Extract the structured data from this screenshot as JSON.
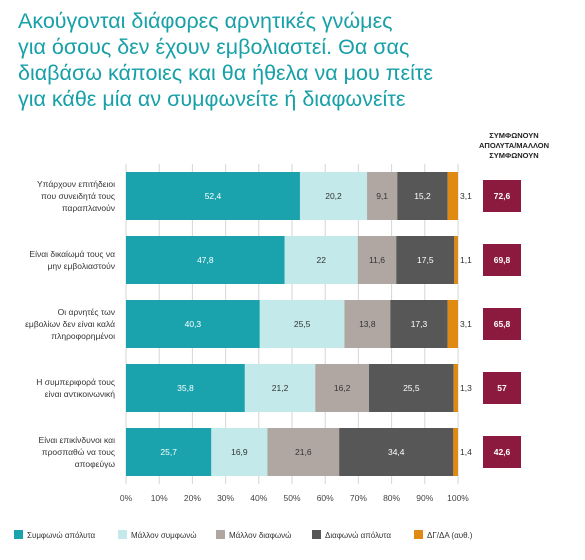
{
  "title": {
    "lines": [
      "Ακούγονται διάφορες αρνητικές γνώμες",
      "για όσους δεν έχουν εμβολιαστεί. Θα σας",
      "διαβάσω κάποιες και θα ήθελα να μου πείτε",
      "για κάθε μία αν συμφωνείτε ή διαφωνείτε"
    ]
  },
  "chart_data": {
    "type": "bar",
    "orientation": "horizontal",
    "stacked": true,
    "categories": [
      [
        "Υπάρχουν επιτήδειοι",
        "που συνειδητά τους",
        "παραπλανούν"
      ],
      [
        "Είναι δικαίωμά τους να",
        "μην εμβολιαστούν"
      ],
      [
        "Οι αρνητές των",
        "εμβολίων δεν είναι καλά",
        "πληροφορημένοι"
      ],
      [
        "Η συμπεριφορά τους",
        "είναι αντικοινωνική"
      ],
      [
        "Είναι επικίνδυνοι και",
        "προσπαθώ να τους",
        "αποφεύγω"
      ]
    ],
    "series": [
      {
        "name": "Συμφωνώ απόλυτα",
        "color": "#1aa3ad",
        "label_color": "#ffffff",
        "values": [
          52.4,
          47.8,
          40.3,
          35.8,
          25.7
        ]
      },
      {
        "name": "Μάλλον συμφωνώ",
        "color": "#c4e9ea",
        "label_color": "#333333",
        "values": [
          20.2,
          22,
          25.5,
          21.2,
          16.9
        ]
      },
      {
        "name": "Μάλλον διαφωνώ",
        "color": "#b1a7a2",
        "label_color": "#333333",
        "values": [
          9.1,
          11.6,
          13.8,
          16.2,
          21.6
        ]
      },
      {
        "name": "Διαφωνώ απόλυτα",
        "color": "#575757",
        "label_color": "#ffffff",
        "values": [
          15.2,
          17.5,
          17.3,
          25.5,
          34.4
        ]
      },
      {
        "name": "ΔΓ/ΔΑ (αυθ.)",
        "color": "#e08a12",
        "label_color": "#333333",
        "values": [
          3.1,
          1.1,
          3.1,
          1.3,
          1.4
        ]
      }
    ],
    "value_labels": [
      [
        "52,4",
        "20,2",
        "9,1",
        "15,2",
        "3,1"
      ],
      [
        "47,8",
        "22",
        "11,6",
        "17,5",
        "1,1"
      ],
      [
        "40,3",
        "25,5",
        "13,8",
        "17,3",
        "3,1"
      ],
      [
        "35,8",
        "21,2",
        "16,2",
        "25,5",
        "1,3"
      ],
      [
        "25,7",
        "16,9",
        "21,6",
        "34,4",
        "1,4"
      ]
    ],
    "xlim": [
      0,
      100
    ],
    "x_ticks": [
      "0%",
      "10%",
      "20%",
      "30%",
      "40%",
      "50%",
      "60%",
      "70%",
      "80%",
      "90%",
      "100%"
    ],
    "grid": true,
    "legend_position": "bottom",
    "summary": {
      "header": [
        "ΣΥΜΦΩΝΟΥΝ",
        "ΑΠΟΛΥΤΑ/ΜΑΛΛΟΝ",
        "ΣΥΜΦΩΝΟΥΝ"
      ],
      "values": [
        72.6,
        69.8,
        65.8,
        57,
        42.6
      ],
      "labels": [
        "72,6",
        "69,8",
        "65,8",
        "57",
        "42,6"
      ],
      "color": "#8c1a3f"
    }
  }
}
